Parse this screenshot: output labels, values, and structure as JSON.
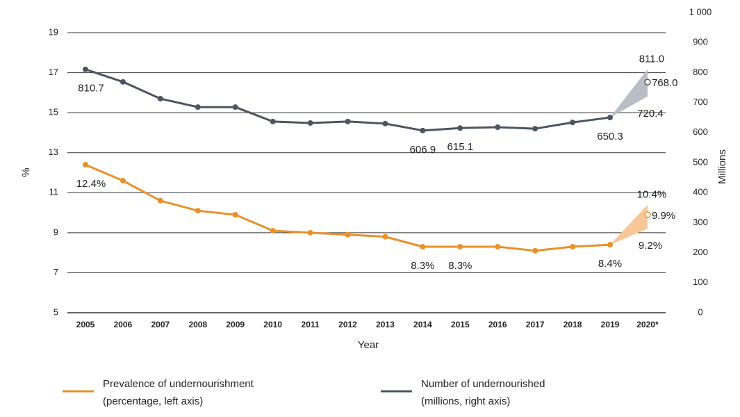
{
  "chart_data": {
    "type": "line",
    "x_label": "Year",
    "y_label": "%",
    "y2_label": "Millions",
    "categories": [
      "2005",
      "2006",
      "2007",
      "2008",
      "2009",
      "2010",
      "2011",
      "2012",
      "2013",
      "2014",
      "2015",
      "2016",
      "2017",
      "2018",
      "2019",
      "2020*"
    ],
    "ylim": [
      5,
      19
    ],
    "yticks": [
      5,
      7,
      9,
      11,
      13,
      15,
      17,
      19
    ],
    "y2lim": [
      0,
      1000
    ],
    "y2ticks": [
      0,
      100,
      200,
      300,
      400,
      500,
      600,
      700,
      800,
      900,
      {
        "value": 1000,
        "label": "1 000"
      }
    ],
    "grid": true,
    "series": [
      {
        "name": "Prevalence of undernourishment",
        "name_detail": "(percentage, left axis)",
        "color": "#e8912a",
        "fan_color": "#f7c797",
        "axis": "y",
        "values": [
          12.4,
          11.6,
          10.6,
          10.1,
          9.9,
          9.1,
          9.0,
          8.9,
          8.8,
          8.3,
          8.3,
          8.3,
          8.1,
          8.3,
          8.4,
          null
        ],
        "value_labels": [
          "12.4%",
          null,
          null,
          null,
          null,
          null,
          null,
          null,
          null,
          "8.3%",
          "8.3%",
          null,
          null,
          null,
          "8.4%",
          null
        ],
        "projection": {
          "value": 9.9,
          "value_label": "9.9%",
          "low": 9.2,
          "low_label": "9.2%",
          "high": 10.4,
          "high_label": "10.4%"
        }
      },
      {
        "name": "Number of undernourished",
        "name_detail": "(millions, right axis)",
        "color": "#4d5561",
        "fan_color": "#b9bdc5",
        "axis": "y2",
        "values": [
          810.7,
          769,
          713,
          685,
          685,
          637,
          632,
          637,
          630,
          606.9,
          615.1,
          618,
          613,
          634,
          650.3,
          null
        ],
        "value_labels": [
          "810.7",
          null,
          null,
          null,
          null,
          null,
          null,
          null,
          null,
          "606.9",
          "615.1",
          null,
          null,
          null,
          "650.3",
          null
        ],
        "projection": {
          "value": 768.0,
          "value_label": "768.0",
          "low": 720.4,
          "low_label": "720.4",
          "high": 811.0,
          "high_label": "811.0"
        }
      }
    ]
  }
}
